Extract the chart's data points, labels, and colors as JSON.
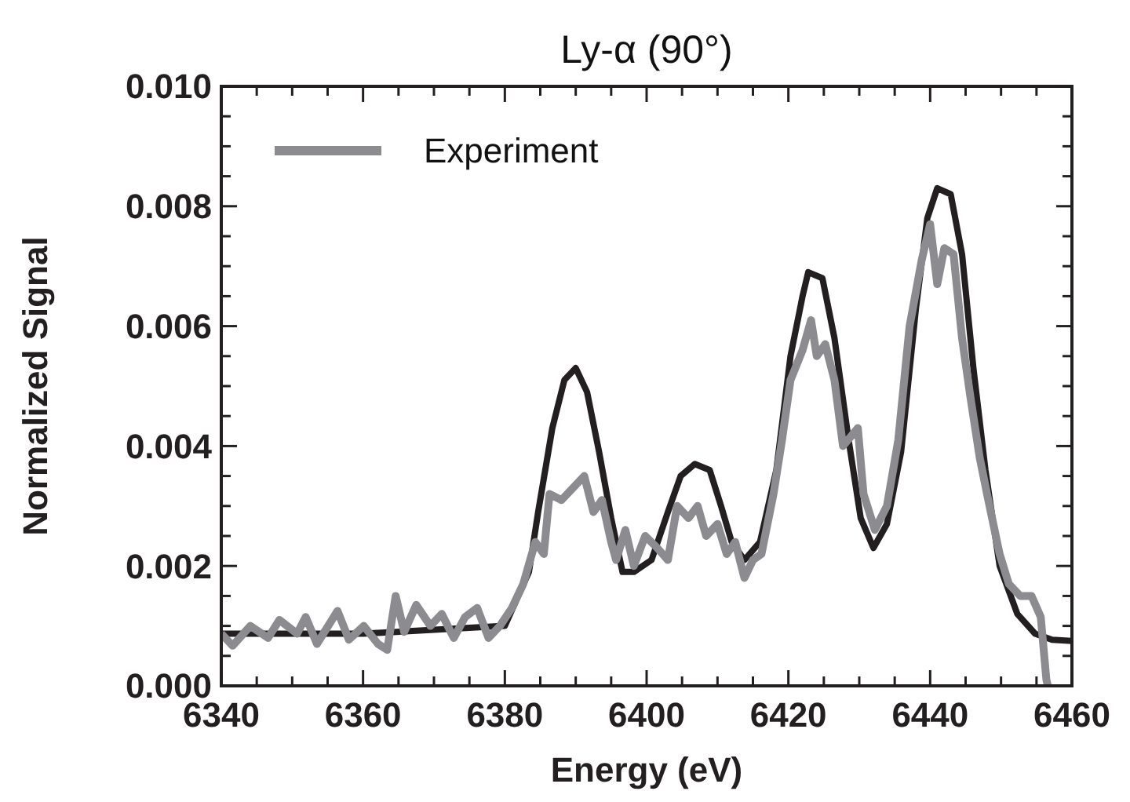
{
  "chart_data": {
    "type": "line",
    "title": "Ly-α (90°)",
    "xlabel": "Energy (eV)",
    "ylabel": "Normalized Signal",
    "xlim": [
      6340,
      6460
    ],
    "xticks": [
      6340,
      {
        "value": 6345,
        "label": null
      },
      6360,
      {
        "value": 6350,
        "label": null
      },
      {
        "value": 6355,
        "label": null
      },
      {
        "value": 6365,
        "label": null
      },
      {
        "value": 6370,
        "label": null
      },
      {
        "value": 6375,
        "label": null
      },
      6380,
      {
        "value": 6385,
        "label": null
      },
      {
        "value": 6390,
        "label": null
      },
      {
        "value": 6395,
        "label": null
      },
      6400,
      {
        "value": 6405,
        "label": null
      },
      {
        "value": 6410,
        "label": null
      },
      {
        "value": 6415,
        "label": null
      },
      6420,
      {
        "value": 6425,
        "label": null
      },
      {
        "value": 6430,
        "label": null
      },
      {
        "value": 6435,
        "label": null
      },
      6440,
      {
        "value": 6445,
        "label": null
      },
      {
        "value": 6450,
        "label": null
      },
      {
        "value": 6455,
        "label": null
      },
      6460
    ],
    "ylim": [
      0,
      0.01
    ],
    "yticks": [
      {
        "value": 0,
        "label": "0.000"
      },
      {
        "value": 0.0005,
        "label": null
      },
      {
        "value": 0.001,
        "label": null
      },
      {
        "value": 0.0015,
        "label": null
      },
      {
        "value": 0.002,
        "label": "0.002"
      },
      {
        "value": 0.0025,
        "label": null
      },
      {
        "value": 0.003,
        "label": null
      },
      {
        "value": 0.0035,
        "label": null
      },
      {
        "value": 0.004,
        "label": "0.004"
      },
      {
        "value": 0.0045,
        "label": null
      },
      {
        "value": 0.005,
        "label": null
      },
      {
        "value": 0.0055,
        "label": null
      },
      {
        "value": 0.006,
        "label": "0.006"
      },
      {
        "value": 0.0065,
        "label": null
      },
      {
        "value": 0.007,
        "label": null
      },
      {
        "value": 0.0075,
        "label": null
      },
      {
        "value": 0.008,
        "label": "0.008"
      },
      {
        "value": 0.0085,
        "label": null
      },
      {
        "value": 0.009,
        "label": null
      },
      {
        "value": 0.0095,
        "label": null
      },
      {
        "value": 0.01,
        "label": "0.010"
      }
    ],
    "grid": false,
    "legend": "top left",
    "marker": "none",
    "line_style": "solid",
    "series": [
      {
        "name": "Experiment",
        "color": "#8c8c90",
        "x": [
          6340,
          6341.6,
          6344.1,
          6346.6,
          6348.2,
          6350.7,
          6351.9,
          6353.5,
          6356.4,
          6358,
          6360.1,
          6362.1,
          6363.4,
          6364.6,
          6365.8,
          6367.5,
          6369.5,
          6371.1,
          6372.8,
          6374.4,
          6376.1,
          6377.7,
          6379.3,
          6381,
          6382.6,
          6384.3,
          6385.5,
          6386.3,
          6388,
          6389.6,
          6391.2,
          6392.5,
          6393.7,
          6395,
          6395.7,
          6397,
          6398.2,
          6399.8,
          6401.5,
          6403,
          6404.3,
          6405.9,
          6407.2,
          6408.4,
          6410,
          6411.3,
          6412.5,
          6413.8,
          6415,
          6416.2,
          6417.9,
          6419.1,
          6420.3,
          6422,
          6423.2,
          6424,
          6425.2,
          6426.5,
          6427.7,
          6429.8,
          6430.6,
          6432.2,
          6433.9,
          6435.5,
          6437.1,
          6438.8,
          6440,
          6441,
          6442,
          6443.3,
          6444.5,
          6445.7,
          6447,
          6448.2,
          6449.8,
          6451.1,
          6452.7,
          6454.3,
          6455.6,
          6456.4,
          6456.6
        ],
        "values": [
          0.00087,
          0.00067,
          0.001,
          0.0008,
          0.0011,
          0.00087,
          0.00115,
          0.0007,
          0.00125,
          0.00077,
          0.001,
          0.0007,
          0.0006,
          0.0015,
          0.0009,
          0.00135,
          0.001,
          0.0012,
          0.0008,
          0.00115,
          0.0013,
          0.0008,
          0.001,
          0.0013,
          0.0017,
          0.0024,
          0.0022,
          0.0032,
          0.0031,
          0.0033,
          0.0035,
          0.0029,
          0.0031,
          0.0024,
          0.0021,
          0.0026,
          0.002,
          0.0025,
          0.0023,
          0.0021,
          0.003,
          0.0028,
          0.003,
          0.0025,
          0.0027,
          0.0022,
          0.0024,
          0.0018,
          0.0021,
          0.0022,
          0.0032,
          0.0041,
          0.0051,
          0.0056,
          0.0061,
          0.0055,
          0.0057,
          0.0051,
          0.004,
          0.0043,
          0.0032,
          0.0026,
          0.003,
          0.0041,
          0.006,
          0.0071,
          0.0077,
          0.0067,
          0.0073,
          0.0072,
          0.0058,
          0.0048,
          0.0038,
          0.0031,
          0.0022,
          0.0017,
          0.0015,
          0.0015,
          0.00115,
          0.0001,
          0
        ]
      },
      {
        "color": "#231f20",
        "x": [
          6340,
          6360,
          6380,
          6383.4,
          6384.7,
          6386.7,
          6388.4,
          6390,
          6391.6,
          6393.3,
          6395,
          6396.6,
          6398.2,
          6400.7,
          6403,
          6404.8,
          6406.8,
          6408.9,
          6410.5,
          6412,
          6413.8,
          6416,
          6418.3,
          6420.3,
          6422,
          6422.8,
          6424.8,
          6426.5,
          6428.5,
          6430.2,
          6432,
          6433.9,
          6435.9,
          6438,
          6439.6,
          6441,
          6442.9,
          6444.5,
          6446.1,
          6447.8,
          6449.8,
          6452.3,
          6454.8,
          6457.2,
          6460
        ],
        "values": [
          0.00087,
          0.00087,
          0.001,
          0.0019,
          0.0029,
          0.0043,
          0.0051,
          0.0053,
          0.0049,
          0.0039,
          0.0028,
          0.0019,
          0.0019,
          0.0021,
          0.0029,
          0.0035,
          0.0037,
          0.0036,
          0.003,
          0.0024,
          0.0021,
          0.0024,
          0.0036,
          0.0055,
          0.0065,
          0.0069,
          0.0068,
          0.0058,
          0.0041,
          0.0028,
          0.0023,
          0.0027,
          0.0039,
          0.0063,
          0.0078,
          0.0083,
          0.0082,
          0.0072,
          0.0053,
          0.0036,
          0.002,
          0.0012,
          0.00087,
          0.00077,
          0.00075
        ]
      }
    ]
  }
}
